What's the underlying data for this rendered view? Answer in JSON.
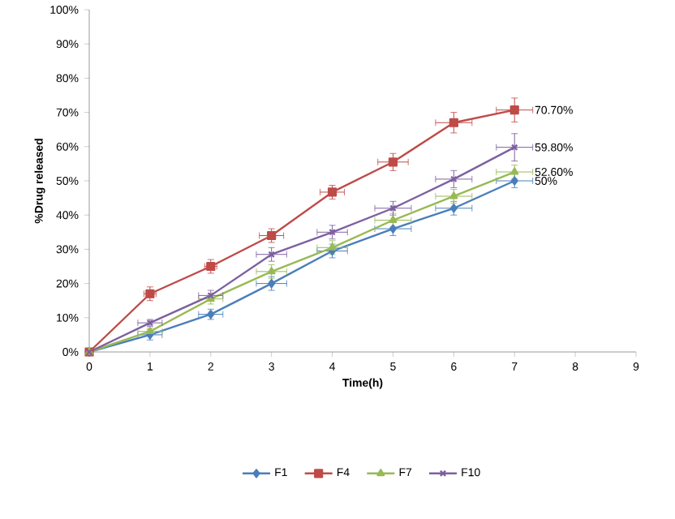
{
  "chart_data": {
    "type": "line",
    "xlabel": "Time(h)",
    "ylabel": "%Drug released",
    "x": [
      0,
      1,
      2,
      3,
      4,
      5,
      6,
      7
    ],
    "series": [
      {
        "name": "F1",
        "color": "#4a7ebb",
        "marker": "diamond",
        "values": [
          0,
          5,
          11,
          20,
          29.5,
          36,
          42,
          50
        ],
        "errors": [
          0,
          1.5,
          1.5,
          2,
          2,
          2,
          2,
          2
        ],
        "xerrors": [
          0,
          0.2,
          0.2,
          0.25,
          0.25,
          0.3,
          0.3,
          0.3
        ],
        "value_labels": [
          null,
          null,
          null,
          null,
          null,
          null,
          null,
          "50%"
        ]
      },
      {
        "name": "F4",
        "color": "#be4b48",
        "marker": "square",
        "values": [
          0,
          17,
          25,
          34,
          46.7,
          55.5,
          67,
          70.7
        ],
        "errors": [
          0,
          2,
          2,
          2,
          2,
          2.5,
          3,
          3.5
        ],
        "xerrors": [
          0,
          0.1,
          0.1,
          0.2,
          0.2,
          0.25,
          0.3,
          0.3
        ],
        "value_labels": [
          null,
          null,
          null,
          null,
          null,
          null,
          null,
          "70.70%"
        ]
      },
      {
        "name": "F7",
        "color": "#98b954",
        "marker": "triangle",
        "values": [
          0,
          6,
          15.5,
          23.5,
          30.5,
          38.5,
          45.5,
          52.6
        ],
        "errors": [
          0,
          1,
          1.5,
          2,
          2,
          2,
          2,
          2
        ],
        "xerrors": [
          0,
          0.2,
          0.2,
          0.25,
          0.25,
          0.3,
          0.3,
          0.3
        ],
        "value_labels": [
          null,
          null,
          null,
          null,
          null,
          null,
          null,
          "52.60%"
        ]
      },
      {
        "name": "F10",
        "color": "#7d60a0",
        "marker": "cross",
        "values": [
          0,
          8.5,
          16.5,
          28.5,
          35,
          42,
          50.5,
          59.8
        ],
        "errors": [
          0,
          1,
          1.5,
          2,
          2,
          2,
          2.5,
          4
        ],
        "xerrors": [
          0,
          0.2,
          0.2,
          0.25,
          0.25,
          0.3,
          0.3,
          0.3
        ],
        "value_labels": [
          null,
          null,
          null,
          null,
          null,
          null,
          null,
          "59.80%"
        ]
      }
    ],
    "xlim": [
      0,
      9
    ],
    "xticks": [
      0,
      1,
      2,
      3,
      4,
      5,
      6,
      7,
      8,
      9
    ],
    "ylim": [
      0,
      100
    ],
    "yticks": [
      {
        "value": 0,
        "label": "0%"
      },
      {
        "value": 10,
        "label": "10%"
      },
      {
        "value": 20,
        "label": "20%"
      },
      {
        "value": 30,
        "label": "30%"
      },
      {
        "value": 40,
        "label": "40%"
      },
      {
        "value": 50,
        "label": "50%"
      },
      {
        "value": 60,
        "label": "60%"
      },
      {
        "value": 70,
        "label": "70%"
      },
      {
        "value": 80,
        "label": "80%"
      },
      {
        "value": 90,
        "label": "90%"
      },
      {
        "value": 100,
        "label": "100%"
      }
    ],
    "legend": "bottom",
    "grid": false
  }
}
